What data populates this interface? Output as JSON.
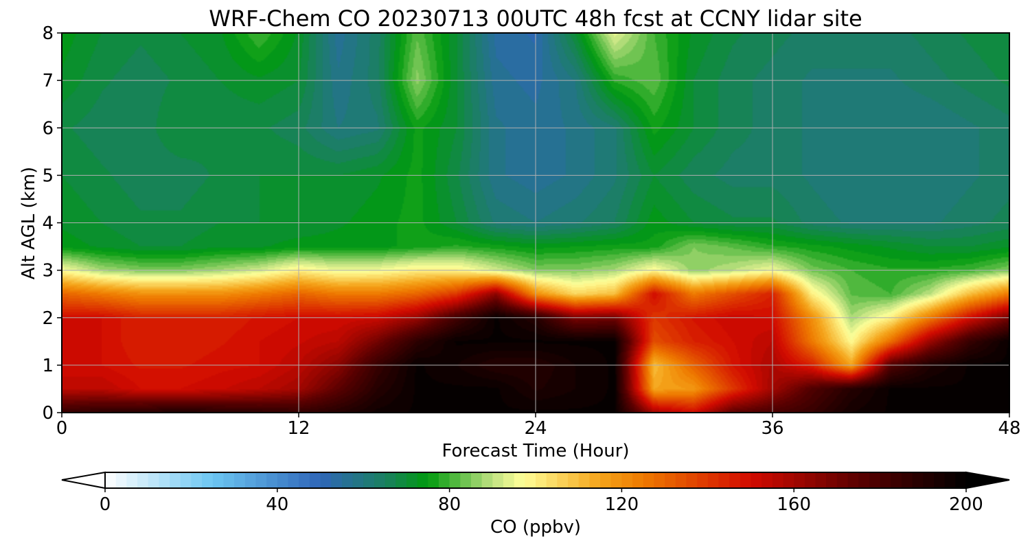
{
  "chart_data": {
    "type": "heatmap",
    "title": "WRF-Chem CO  20230713 00UTC 48h fcst at CCNY lidar site",
    "xlabel": "Forecast Time (Hour)",
    "ylabel": "Alt AGL (km)",
    "xlim": [
      0,
      48
    ],
    "ylim": [
      0,
      8
    ],
    "xticks": [
      0,
      12,
      24,
      36,
      48
    ],
    "yticks": [
      0,
      1,
      2,
      3,
      4,
      5,
      6,
      7,
      8
    ],
    "grid": true,
    "colorbar": {
      "label": "CO  (ppbv)",
      "min": 0,
      "max": 200,
      "ticks": [
        0,
        40,
        80,
        120,
        160,
        200
      ],
      "extend": "both",
      "stops": [
        {
          "v": 0,
          "color": "#ffffff"
        },
        {
          "v": 25,
          "color": "#6cc6f2"
        },
        {
          "v": 50,
          "color": "#2f66b8"
        },
        {
          "v": 65,
          "color": "#1a8060"
        },
        {
          "v": 75,
          "color": "#009a0e"
        },
        {
          "v": 90,
          "color": "#c0e282"
        },
        {
          "v": 97,
          "color": "#ffff98"
        },
        {
          "v": 115,
          "color": "#f5a41a"
        },
        {
          "v": 125,
          "color": "#ee7a00"
        },
        {
          "v": 150,
          "color": "#d20a00"
        },
        {
          "v": 175,
          "color": "#5a0000"
        },
        {
          "v": 200,
          "color": "#000000"
        }
      ]
    },
    "field": {
      "x": [
        0,
        2,
        4,
        6,
        8,
        10,
        12,
        14,
        16,
        18,
        20,
        22,
        24,
        26,
        28,
        30,
        32,
        34,
        36,
        38,
        40,
        42,
        44,
        46,
        48
      ],
      "y": [
        0,
        0.5,
        1,
        1.5,
        2,
        2.5,
        3,
        3.5,
        4,
        5,
        6,
        7,
        8
      ],
      "z": [
        [
          185,
          188,
          190,
          192,
          190,
          188,
          186,
          190,
          196,
          198,
          198,
          198,
          198,
          198,
          198,
          160,
          150,
          175,
          180,
          185,
          195,
          198,
          198,
          198,
          198
        ],
        [
          155,
          155,
          150,
          150,
          152,
          155,
          160,
          175,
          190,
          198,
          198,
          198,
          192,
          195,
          198,
          115,
          118,
          140,
          160,
          178,
          190,
          198,
          198,
          198,
          198
        ],
        [
          150,
          150,
          147,
          147,
          149,
          150,
          155,
          165,
          185,
          198,
          195,
          190,
          190,
          195,
          198,
          110,
          130,
          148,
          158,
          145,
          115,
          178,
          192,
          198,
          198
        ],
        [
          150,
          150,
          145,
          145,
          147,
          150,
          152,
          155,
          170,
          188,
          198,
          198,
          198,
          198,
          198,
          135,
          145,
          150,
          155,
          125,
          98,
          128,
          162,
          185,
          198
        ],
        [
          150,
          150,
          145,
          145,
          145,
          148,
          150,
          150,
          152,
          162,
          182,
          198,
          190,
          168,
          170,
          140,
          148,
          152,
          150,
          120,
          88,
          100,
          125,
          150,
          170
        ],
        [
          130,
          125,
          120,
          120,
          120,
          125,
          130,
          125,
          125,
          130,
          140,
          165,
          120,
          105,
          110,
          150,
          125,
          135,
          145,
          100,
          82,
          80,
          90,
          110,
          125
        ],
        [
          97,
          88,
          85,
          85,
          88,
          92,
          100,
          95,
          96,
          100,
          100,
          92,
          85,
          85,
          88,
          98,
          86,
          90,
          96,
          84,
          80,
          78,
          78,
          80,
          85
        ],
        [
          74,
          72,
          70,
          70,
          72,
          72,
          74,
          74,
          74,
          76,
          78,
          76,
          74,
          75,
          76,
          76,
          85,
          82,
          78,
          76,
          74,
          72,
          70,
          70,
          72
        ],
        [
          72,
          70,
          68,
          68,
          70,
          70,
          70,
          72,
          74,
          76,
          70,
          62,
          60,
          62,
          65,
          74,
          70,
          68,
          68,
          64,
          62,
          62,
          62,
          64,
          66
        ],
        [
          70,
          68,
          66,
          66,
          68,
          70,
          70,
          70,
          72,
          76,
          68,
          58,
          56,
          58,
          62,
          70,
          66,
          64,
          64,
          62,
          60,
          60,
          60,
          62,
          64
        ],
        [
          68,
          66,
          66,
          70,
          68,
          68,
          66,
          60,
          62,
          76,
          70,
          58,
          56,
          58,
          62,
          76,
          70,
          66,
          64,
          62,
          60,
          60,
          60,
          62,
          64
        ],
        [
          72,
          68,
          66,
          68,
          70,
          72,
          70,
          58,
          64,
          86,
          70,
          56,
          54,
          60,
          78,
          82,
          70,
          66,
          64,
          62,
          62,
          62,
          64,
          66,
          68
        ],
        [
          74,
          70,
          68,
          70,
          72,
          80,
          72,
          56,
          64,
          82,
          70,
          54,
          52,
          70,
          94,
          80,
          72,
          68,
          66,
          64,
          64,
          64,
          66,
          68,
          70
        ]
      ]
    }
  }
}
